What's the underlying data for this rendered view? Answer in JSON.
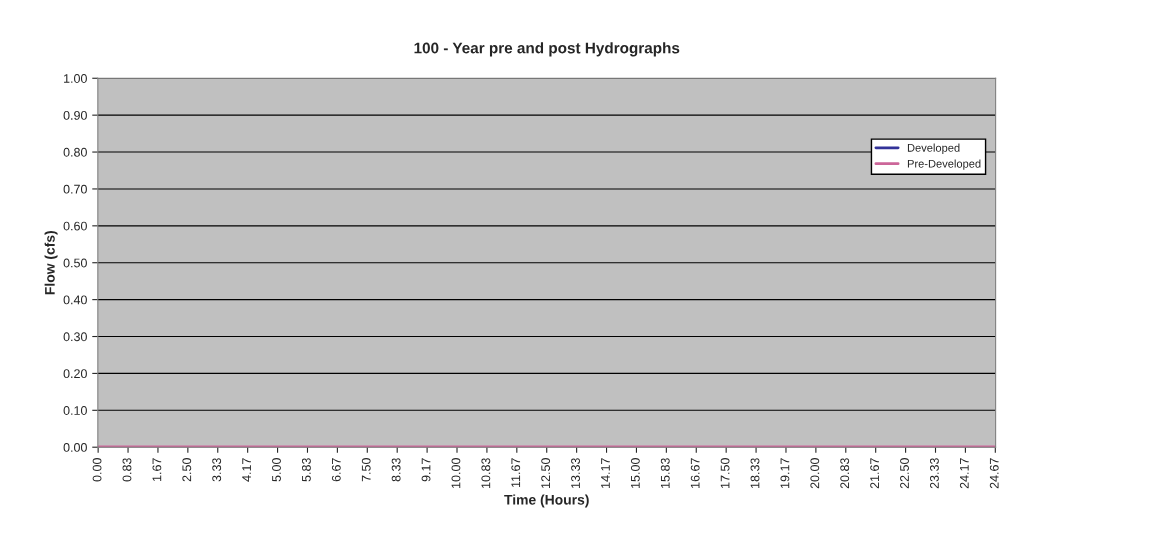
{
  "chart_data": {
    "type": "line",
    "title": "100 - Year pre and post Hydrographs",
    "xlabel": "Time (Hours)",
    "ylabel": "Flow (cfs)",
    "categories": [
      "0.00",
      "0.83",
      "1.67",
      "2.50",
      "3.33",
      "4.17",
      "5.00",
      "5.83",
      "6.67",
      "7.50",
      "8.33",
      "9.17",
      "10.00",
      "10.83",
      "11.67",
      "12.50",
      "13.33",
      "14.17",
      "15.00",
      "15.83",
      "16.67",
      "17.50",
      "18.33",
      "19.17",
      "20.00",
      "20.83",
      "21.67",
      "22.50",
      "23.33",
      "24.17",
      "24.67"
    ],
    "series": [
      {
        "name": "Developed",
        "color": "#333399",
        "values": [
          null,
          null,
          null,
          null,
          null,
          null,
          null,
          null,
          null,
          null,
          null,
          null,
          null,
          null,
          null,
          null,
          null,
          null,
          null,
          null,
          null,
          null,
          null,
          null,
          null,
          null,
          null,
          null,
          null,
          null,
          null
        ]
      },
      {
        "name": "Pre-Developed",
        "color": "#cc6699",
        "values": [
          0,
          0,
          0,
          0,
          0,
          0,
          0,
          0,
          0,
          0,
          0,
          0,
          0,
          0,
          0,
          0,
          0,
          0,
          0,
          0,
          0,
          0,
          0,
          0,
          0,
          0,
          0,
          0,
          0,
          0,
          0
        ]
      }
    ],
    "ylim": [
      0,
      1
    ],
    "yticks": [
      {
        "value": 0,
        "label": "0.00"
      },
      {
        "value": 0.1,
        "label": "0.10"
      },
      {
        "value": 0.2,
        "label": "0.20"
      },
      {
        "value": 0.3,
        "label": "0.30"
      },
      {
        "value": 0.4,
        "label": "0.40"
      },
      {
        "value": 0.5,
        "label": "0.50"
      },
      {
        "value": 0.6,
        "label": "0.60"
      },
      {
        "value": 0.7,
        "label": "0.70"
      },
      {
        "value": 0.8,
        "label": "0.80"
      },
      {
        "value": 0.9,
        "label": "0.90"
      },
      {
        "value": 1,
        "label": "1.00"
      }
    ],
    "grid": "y",
    "legend": "top right"
  }
}
